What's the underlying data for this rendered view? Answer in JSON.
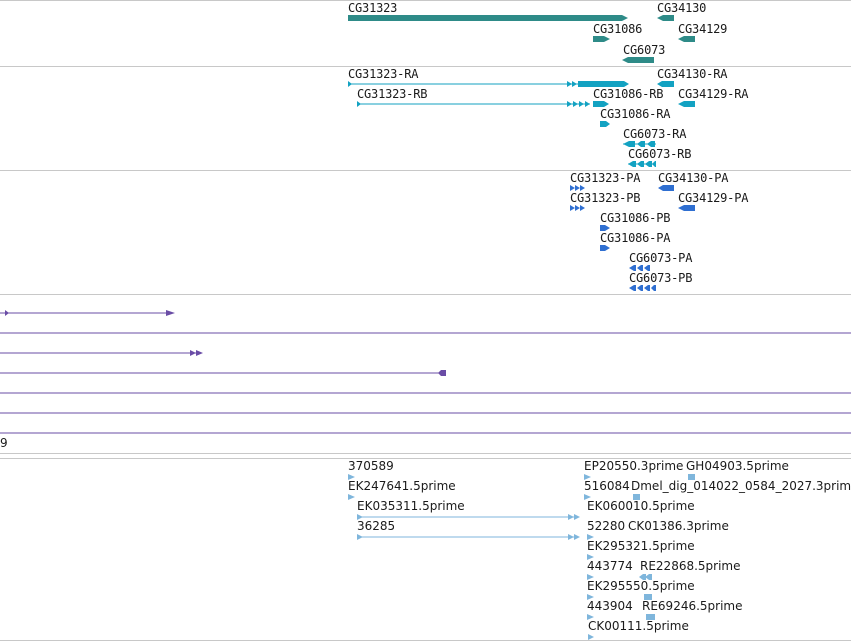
{
  "colors": {
    "gene": "#2e8b88",
    "transcript": "#13a2c2",
    "protein": "#2f6fd1",
    "alignment": "#6a4ca6",
    "est": "#7fb6dc",
    "separator": "#c8c8c8"
  },
  "genes": {
    "labels": [
      "CG31323",
      "CG34130",
      "CG31086",
      "CG34129",
      "CG6073"
    ]
  },
  "transcripts": {
    "labels": [
      "CG31323-RA",
      "CG34130-RA",
      "CG31323-RB",
      "CG31086-RB",
      "CG34129-RA",
      "CG31086-RA",
      "CG6073-RA",
      "CG6073-RB"
    ]
  },
  "proteins": {
    "labels": [
      "CG31323-PA",
      "CG34130-PA",
      "CG31323-PB",
      "CG34129-PA",
      "CG31086-PB",
      "CG31086-PA",
      "CG6073-PA",
      "CG6073-PB"
    ]
  },
  "alignments": {
    "label": "9"
  },
  "ests": {
    "labels": [
      "370589",
      "EP20550.3prime",
      "GH04903.5prime",
      "EK247641.5prime",
      "516084",
      "Dmel_dig_014022_0584_2027.3prime",
      "EK035311.5prime",
      "EK060010.5prime",
      "36285",
      "52280",
      "CK01386.3prime",
      "EK295321.5prime",
      "443774",
      "RE22868.5prime",
      "EK295550.5prime",
      "443904",
      "RE69246.5prime",
      "CK00111.5prime"
    ]
  }
}
